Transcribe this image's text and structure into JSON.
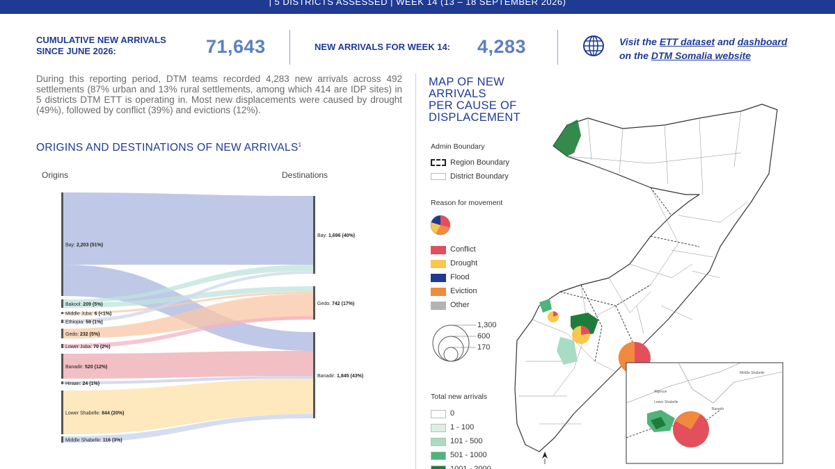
{
  "banner": {
    "text": "|   5 DISTRICTS ASSESSED  |  WEEK 14 (13 – 18 SEPTEMBER 2026)"
  },
  "kpis": {
    "cumulative_label_1": "CUMULATIVE NEW ARRIVALS",
    "cumulative_label_2": "SINCE JUNE 2026:",
    "cumulative_value": "71,643",
    "week_label": "NEW ARRIVALS FOR WEEK 14:",
    "week_value": "4,283"
  },
  "link": {
    "line1_pre": "Visit the ",
    "line1_link1": "ETT dataset",
    "line1_mid": " and ",
    "line1_link2": "dashboard",
    "line2_pre": "on the ",
    "line2_link": "DTM Somalia website"
  },
  "intro": "During this reporting period, DTM teams recorded 4,283 new arrivals across 492 settlements (87% urban and 13% rural settlements, among which 414 are IDP sites) in 5 districts DTM ETT is operating in. Most new displacements were caused by drought (49%), followed by conflict (39%) and evictions (12%).",
  "sankey": {
    "title": "ORIGINS AND DESTINATIONS OF NEW ARRIVALS",
    "title_sup": "1",
    "origins_heading": "Origins",
    "destinations_heading": "Destinations",
    "origins": [
      {
        "name": "Bay:",
        "value": "2,203 (51%)",
        "color": "#a9b6dd"
      },
      {
        "name": "Bakool:",
        "value": "209 (5%)",
        "color": "#bfe3dc"
      },
      {
        "name": "Middle Juba:",
        "value": "6 (<1%)",
        "color": "#f7c9a8"
      },
      {
        "name": "Ethiopia:",
        "value": "59 (1%)",
        "color": "#cfd6ec"
      },
      {
        "name": "Gedo:",
        "value": "232 (5%)",
        "color": "#f8c7a6"
      },
      {
        "name": "Lower Juba:",
        "value": "70 (2%)",
        "color": "#f4b3c3"
      },
      {
        "name": "Banadir:",
        "value": "520 (12%)",
        "color": "#eeaab0"
      },
      {
        "name": "Hiraan:",
        "value": "24 (1%)",
        "color": "#c5cce6"
      },
      {
        "name": "Lower Shabelle:",
        "value": "844 (20%)",
        "color": "#fde0a8"
      },
      {
        "name": "Middle Shabelle:",
        "value": "116 (3%)",
        "color": "#c5d2ee"
      }
    ],
    "destinations": [
      {
        "name": "Bay:",
        "value": "1,696 (40%)"
      },
      {
        "name": "Gedo:",
        "value": "742 (17%)"
      },
      {
        "name": "Banadir:",
        "value": "1,845 (43%)"
      }
    ]
  },
  "map": {
    "title_lines": [
      "MAP OF NEW",
      "ARRIVALS",
      "PER CAUSE OF",
      "DISPLACEMENT"
    ],
    "admin_heading": "Admin Boundary",
    "region_boundary": "Region Boundary",
    "district_boundary": "District Boundary",
    "reason_heading": "Reason for movement",
    "reasons": [
      {
        "label": "Conflict",
        "color": "#e2505c"
      },
      {
        "label": "Drought",
        "color": "#f9c74f"
      },
      {
        "label": "Flood",
        "color": "#1f3a93"
      },
      {
        "label": "Eviction",
        "color": "#f28a3e"
      },
      {
        "label": "Other",
        "color": "#b3b3b3"
      }
    ],
    "size_values": [
      "1,300",
      "600",
      "170"
    ],
    "total_heading": "Total new arrivals",
    "total_classes": [
      {
        "label": "0",
        "color": "#ffffff"
      },
      {
        "label": "1 - 100",
        "color": "#dcefe6"
      },
      {
        "label": "101 - 500",
        "color": "#a8dcc3"
      },
      {
        "label": "501 - 1000",
        "color": "#4fb37a"
      },
      {
        "label": "1001 - 2000",
        "color": "#1e7d3a"
      }
    ],
    "inset_labels": [
      "Middle Shabelle",
      "Banadir",
      "Afgooye",
      "Lower Shabelle"
    ]
  }
}
